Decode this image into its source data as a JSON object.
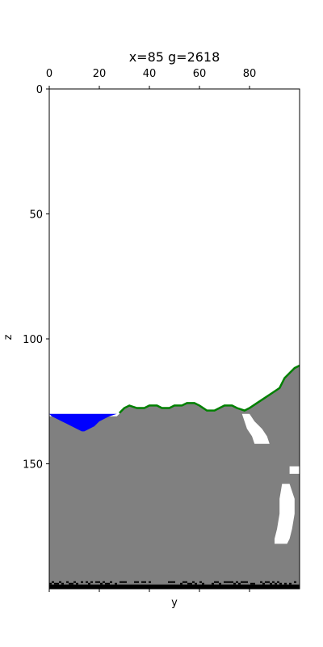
{
  "chart_data": {
    "type": "heatmap",
    "title": "x=85 g=2618",
    "xlabel": "y",
    "ylabel": "z",
    "xlim": [
      0,
      100
    ],
    "ylim": [
      200,
      0
    ],
    "xticks": [
      0,
      20,
      40,
      60,
      80
    ],
    "yticks": [
      0,
      50,
      100,
      150
    ],
    "x_tick_position": "top",
    "x_label_position": "bottom",
    "grid": false,
    "colors": {
      "air": "#ffffff",
      "stone": "#808080",
      "water": "#0000ff",
      "grass": "#008000",
      "bedrock": "#000000"
    },
    "surface_z": [
      [
        0,
        131
      ],
      [
        5,
        131
      ],
      [
        10,
        131
      ],
      [
        15,
        131
      ],
      [
        20,
        131
      ],
      [
        25,
        131
      ],
      [
        27,
        131
      ],
      [
        28,
        130
      ],
      [
        30,
        128
      ],
      [
        32,
        127
      ],
      [
        35,
        128
      ],
      [
        38,
        128
      ],
      [
        40,
        127
      ],
      [
        43,
        127
      ],
      [
        45,
        128
      ],
      [
        48,
        128
      ],
      [
        50,
        127
      ],
      [
        53,
        127
      ],
      [
        55,
        126
      ],
      [
        58,
        126
      ],
      [
        60,
        127
      ],
      [
        63,
        129
      ],
      [
        66,
        129
      ],
      [
        68,
        128
      ],
      [
        70,
        127
      ],
      [
        73,
        127
      ],
      [
        75,
        128
      ],
      [
        78,
        129
      ],
      [
        80,
        128
      ],
      [
        83,
        126
      ],
      [
        86,
        124
      ],
      [
        89,
        122
      ],
      [
        92,
        120
      ],
      [
        94,
        116
      ],
      [
        96,
        114
      ],
      [
        98,
        112
      ],
      [
        100,
        111
      ]
    ],
    "water": {
      "level_z": 130,
      "y_range": [
        0,
        28
      ],
      "bottom_z": [
        [
          0,
          130
        ],
        [
          1,
          131
        ],
        [
          3,
          132
        ],
        [
          5,
          133
        ],
        [
          7,
          134
        ],
        [
          9,
          135
        ],
        [
          11,
          136
        ],
        [
          13,
          137
        ],
        [
          14,
          137
        ],
        [
          16,
          136
        ],
        [
          18,
          135
        ],
        [
          20,
          133
        ],
        [
          22,
          132
        ],
        [
          24,
          131
        ],
        [
          27,
          130
        ],
        [
          28,
          130
        ]
      ]
    },
    "caves": [
      {
        "left": [
          [
            130,
            77
          ],
          [
            133,
            78
          ],
          [
            136,
            79
          ],
          [
            139,
            81
          ],
          [
            142,
            82
          ]
        ],
        "right": [
          [
            130,
            80
          ],
          [
            133,
            82
          ],
          [
            136,
            85
          ],
          [
            139,
            87
          ],
          [
            142,
            88
          ]
        ]
      },
      {
        "left": [
          [
            151,
            96
          ],
          [
            154,
            96
          ]
        ],
        "right": [
          [
            151,
            100
          ],
          [
            154,
            100
          ]
        ]
      },
      {
        "left": [
          [
            158,
            93
          ],
          [
            164,
            92
          ],
          [
            170,
            92
          ],
          [
            176,
            91
          ],
          [
            180,
            90
          ],
          [
            182,
            90
          ]
        ],
        "right": [
          [
            158,
            96
          ],
          [
            164,
            98
          ],
          [
            170,
            98
          ],
          [
            176,
            97
          ],
          [
            180,
            96
          ],
          [
            182,
            95
          ]
        ]
      }
    ],
    "bedrock_z_range": [
      197,
      200
    ]
  }
}
